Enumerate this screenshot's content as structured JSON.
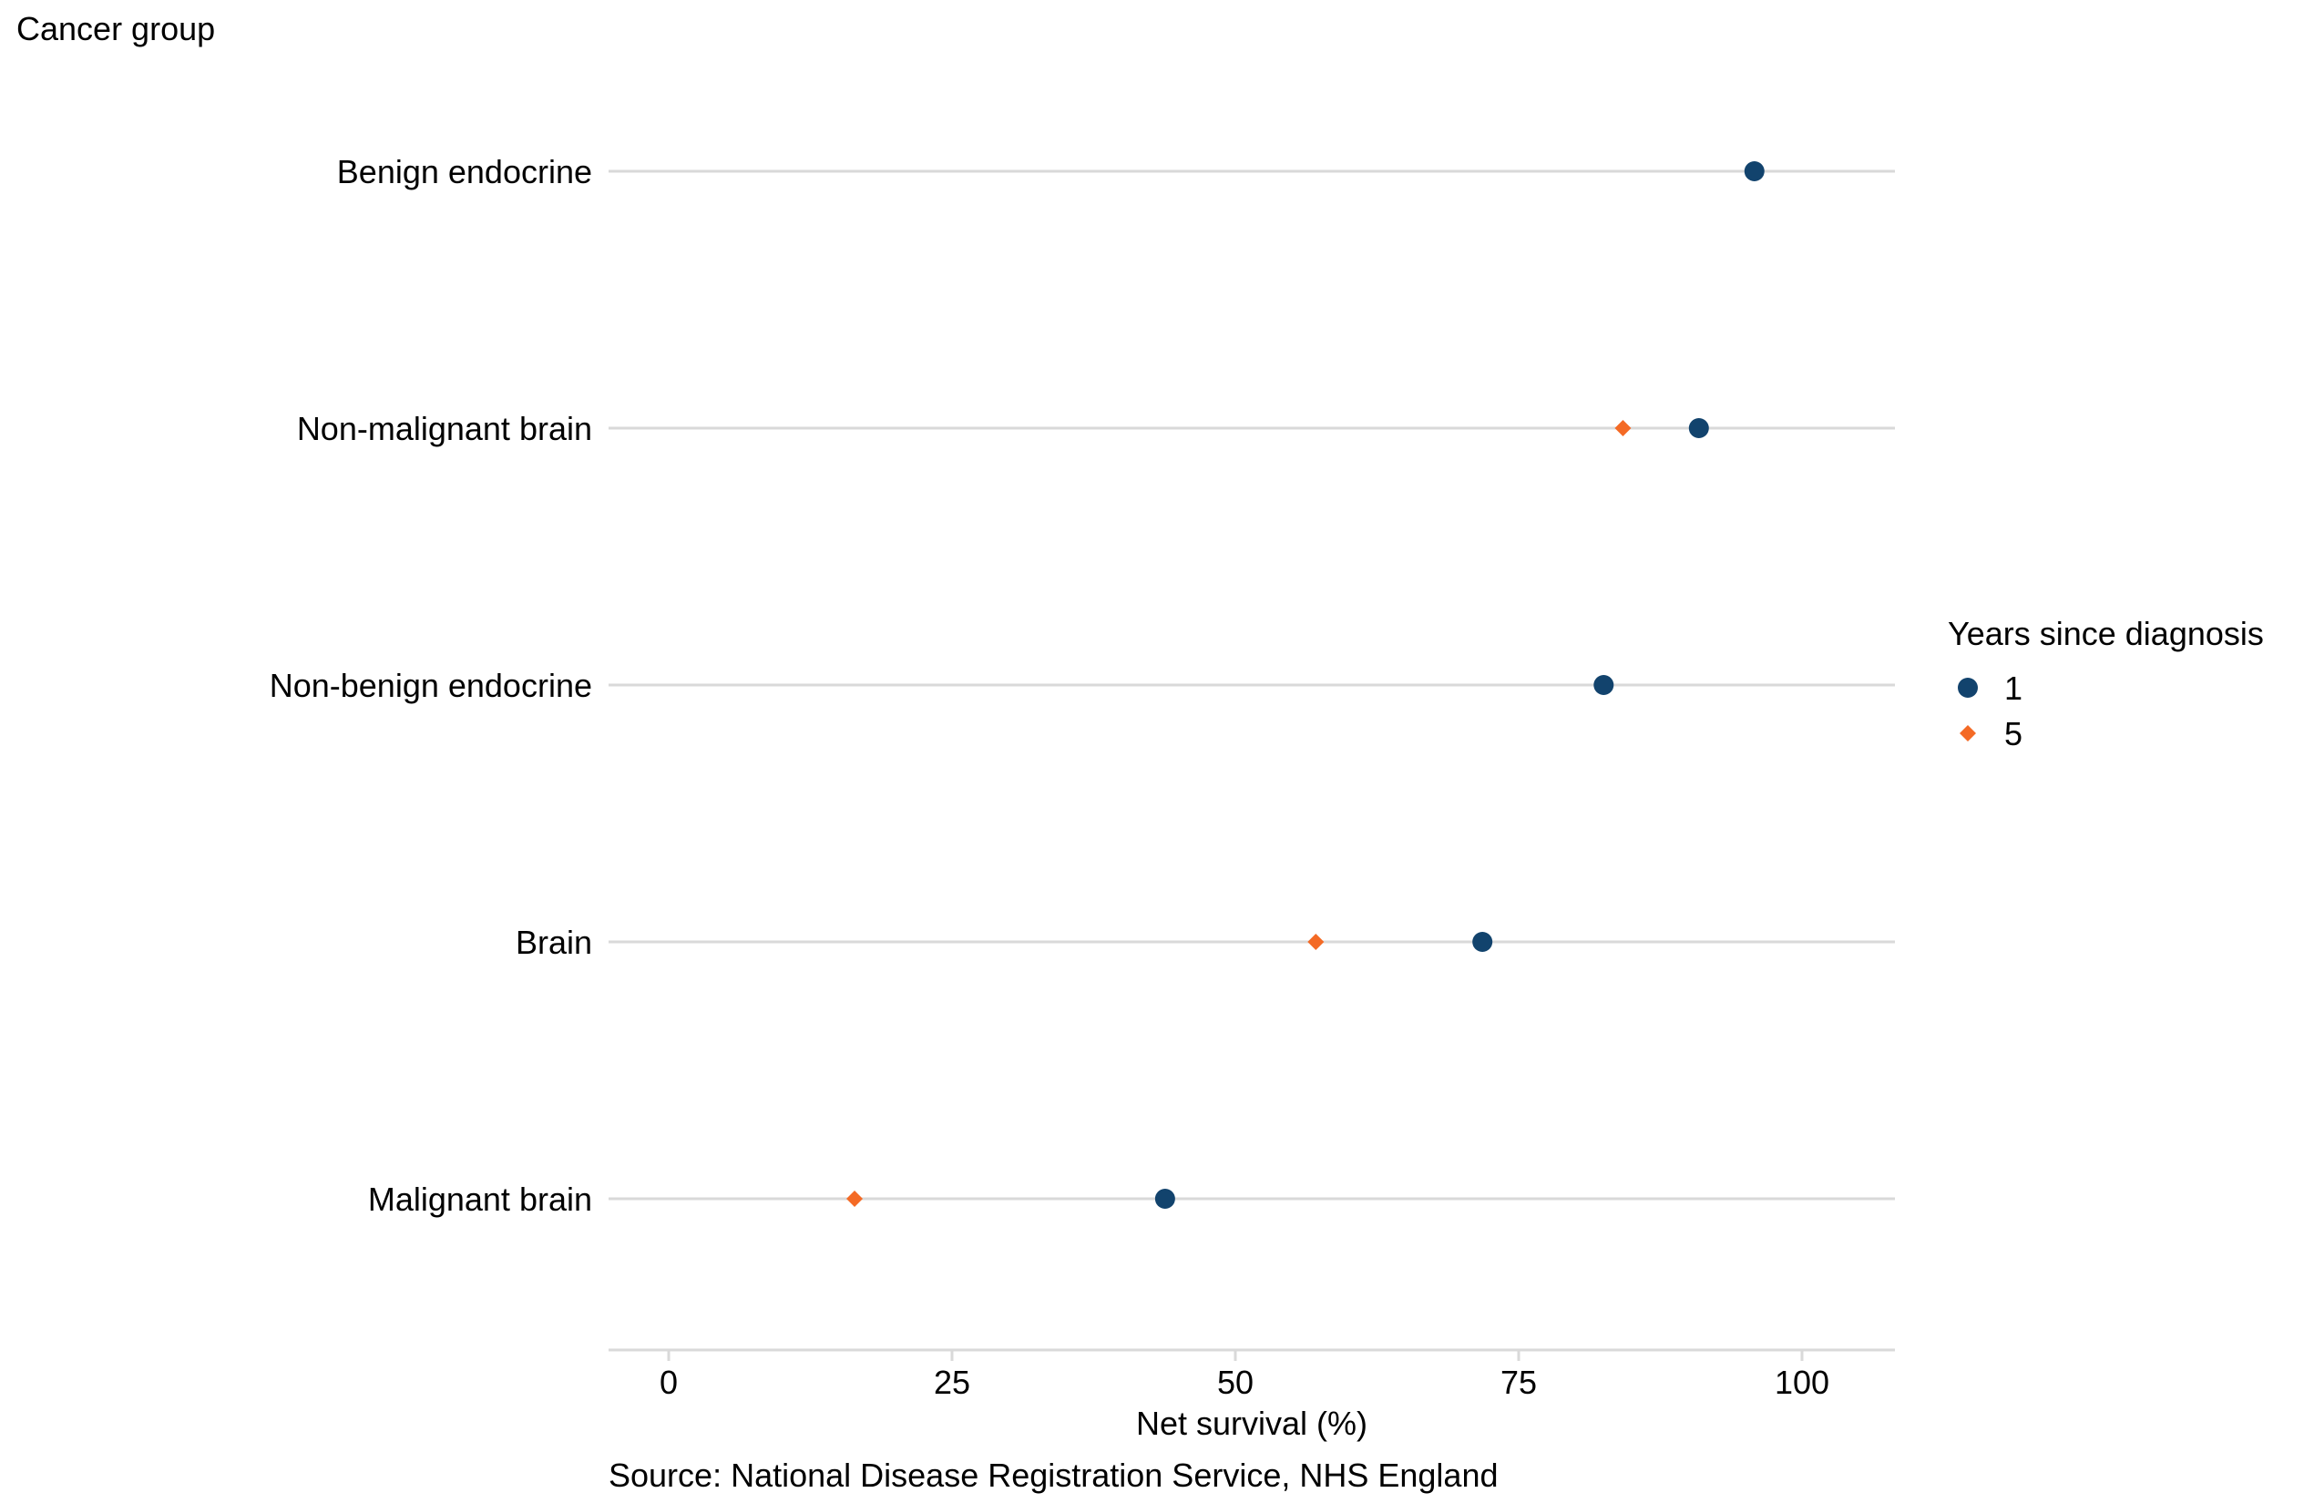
{
  "chart_data": {
    "type": "scatter",
    "y_axis_title": "Cancer group",
    "xlabel": "Net survival (%)",
    "source": "Source: National Disease Registration Service, NHS England",
    "categories": [
      "Benign endocrine",
      "Non-malignant brain",
      "Non-benign endocrine",
      "Brain",
      "Malignant brain"
    ],
    "xlim": [
      -5.5,
      108
    ],
    "x_ticks": [
      0,
      25,
      50,
      75,
      100
    ],
    "x_tick_labels": [
      "0",
      "25",
      "50",
      "75",
      "100"
    ],
    "grid": "horizontal lines per category",
    "legend": {
      "title": "Years since diagnosis",
      "placement": "right"
    },
    "series": [
      {
        "name": "1",
        "marker": "circle",
        "color": "#12436D",
        "values": [
          95.8,
          90.9,
          82.5,
          71.8,
          43.8
        ]
      },
      {
        "name": "5",
        "marker": "diamond",
        "color": "#F46A25",
        "values": [
          null,
          84.2,
          null,
          57.1,
          16.4
        ]
      }
    ]
  }
}
